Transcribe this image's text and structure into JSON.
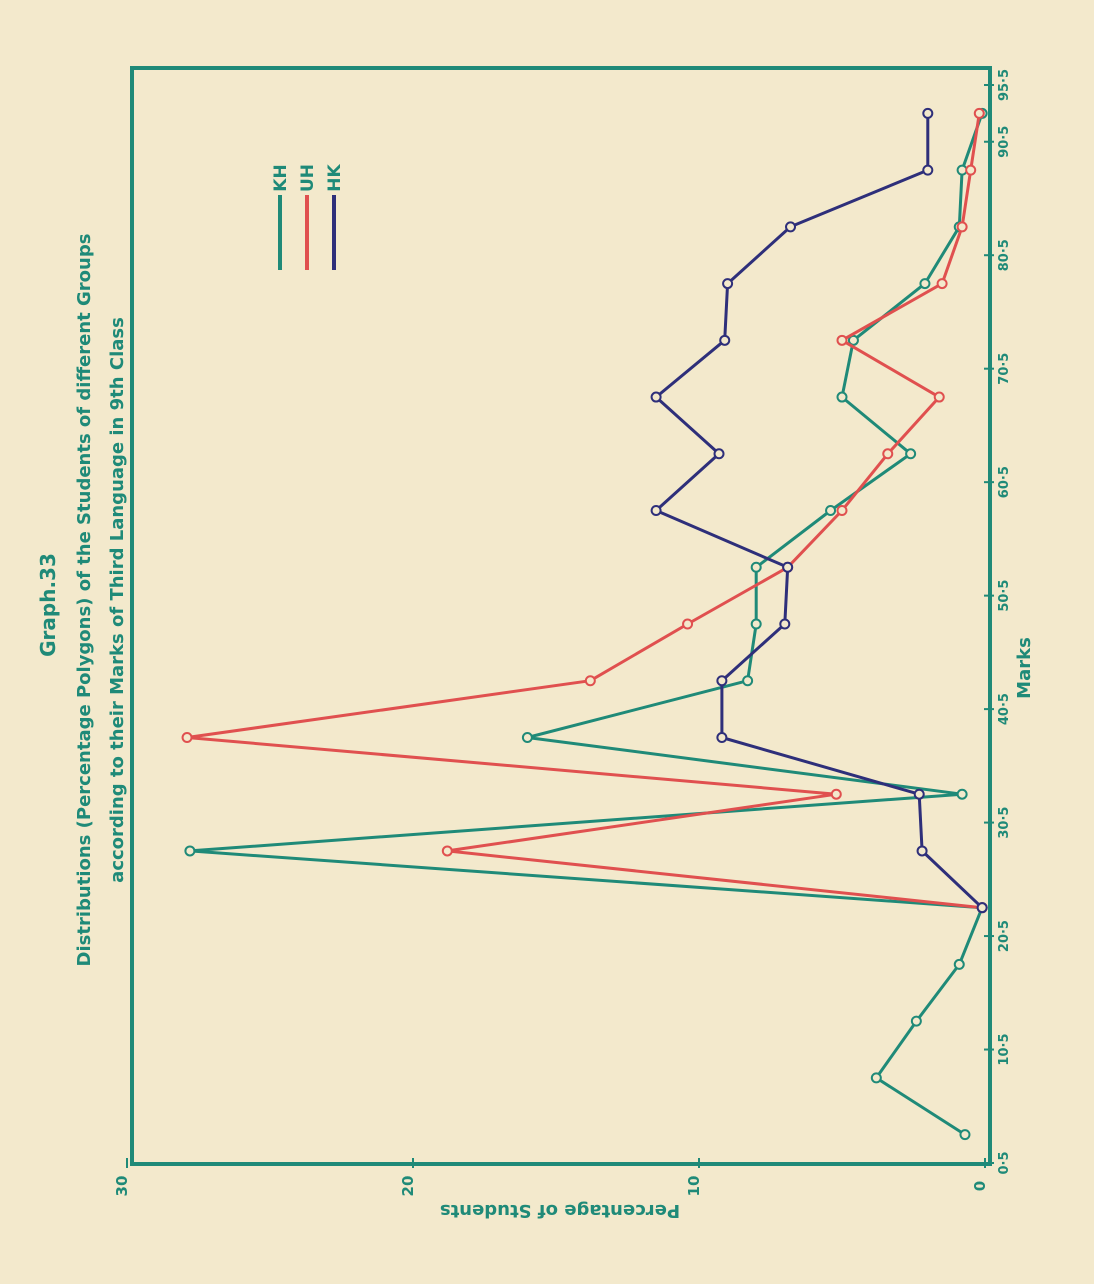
{
  "chart_data": {
    "type": "line",
    "title": "Graph.33",
    "subtitle_line1": "Distributions (Percentage Polygons) of the Students of different Groups",
    "subtitle_line2": "according to their Marks of Third Language in 9th Class",
    "xlabel": "Marks",
    "ylabel": "Percentage of Students",
    "xlim": [
      0.5,
      95.5
    ],
    "ylim": [
      0,
      30
    ],
    "x_ticks": [
      "0·5",
      "10·5",
      "20·5",
      "30·5",
      "40·5",
      "50·5",
      "60·5",
      "70·5",
      "80·5",
      "90·5",
      "95·5"
    ],
    "x_tick_values": [
      0.5,
      10.5,
      20.5,
      30.5,
      40.5,
      50.5,
      60.5,
      70.5,
      80.5,
      90.5,
      95.5
    ],
    "y_ticks": [
      "0",
      "10",
      "20",
      "30"
    ],
    "y_tick_values": [
      0,
      10,
      20,
      30
    ],
    "legend_position": "top-right",
    "series": [
      {
        "name": "KH",
        "color": "#1f8a78",
        "x": [
          3,
          8,
          13,
          18,
          23,
          28,
          33,
          38,
          43,
          48,
          53,
          58,
          63,
          68,
          73,
          78,
          83,
          88,
          93
        ],
        "y": [
          0.7,
          3.8,
          2.4,
          0.9,
          0.1,
          27.8,
          0.8,
          16.0,
          8.3,
          8.0,
          8.0,
          5.4,
          2.6,
          5.0,
          4.6,
          2.1,
          0.9,
          0.8,
          0.1
        ]
      },
      {
        "name": "UH",
        "color": "#e0504f",
        "x": [
          23,
          28,
          33,
          38,
          43,
          48,
          53,
          58,
          63,
          68,
          73,
          78,
          83,
          88,
          93
        ],
        "y": [
          0.1,
          18.8,
          5.2,
          27.9,
          13.8,
          10.4,
          6.9,
          5.0,
          3.4,
          1.6,
          5.0,
          1.5,
          0.8,
          0.5,
          0.2
        ]
      },
      {
        "name": "HK",
        "color": "#2e2f7a",
        "x": [
          23,
          28,
          33,
          38,
          43,
          48,
          53,
          58,
          63,
          68,
          73,
          78,
          83,
          88,
          93
        ],
        "y": [
          0.1,
          2.2,
          2.3,
          9.2,
          9.2,
          7.0,
          6.9,
          11.5,
          9.3,
          11.5,
          9.1,
          9.0,
          6.8,
          2.0,
          2.0
        ]
      }
    ]
  }
}
